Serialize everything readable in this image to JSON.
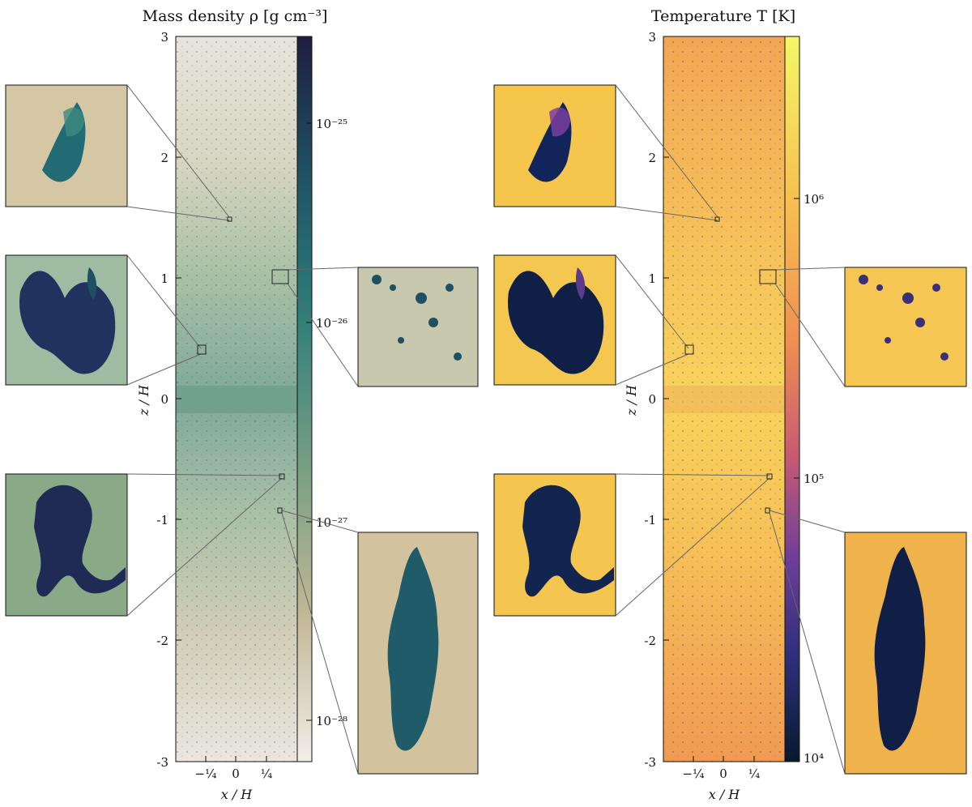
{
  "figure": {
    "left_panel": {
      "title": "Mass density ρ [g cm⁻³]",
      "xlabel": "x / H",
      "ylabel": "z / H",
      "x_ticks": [
        "−¼",
        "0",
        "¼"
      ],
      "y_ticks": [
        "3",
        "2",
        "1",
        "0",
        "-1",
        "-2",
        "-3"
      ],
      "colorbar": {
        "ticks": [
          "10⁻²⁵",
          "10⁻²⁶",
          "10⁻²⁷",
          "10⁻²⁸"
        ],
        "colors": [
          "#1e1f3d",
          "#1f4f62",
          "#2e7d7a",
          "#6f9f80",
          "#b9b48f",
          "#f0ede8"
        ]
      }
    },
    "right_panel": {
      "title": "Temperature T [K]",
      "xlabel": "x / H",
      "ylabel": "z / H",
      "x_ticks": [
        "−¼",
        "0",
        "¼"
      ],
      "y_ticks": [
        "3",
        "2",
        "1",
        "0",
        "-1",
        "-2",
        "-3"
      ],
      "colorbar": {
        "ticks": [
          "10⁶",
          "10⁵",
          "10⁴"
        ],
        "colors": [
          "#f7f266",
          "#f7c350",
          "#f0904f",
          "#c85a72",
          "#6b3f9a",
          "#2a2f7a",
          "#0a1a36"
        ]
      }
    }
  }
}
